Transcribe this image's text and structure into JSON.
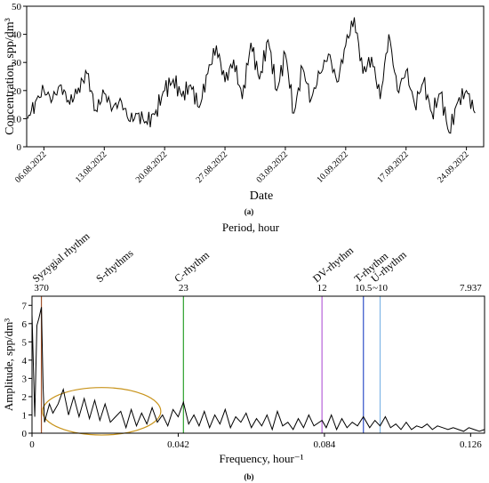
{
  "chart_data": [
    {
      "type": "line",
      "panel_label": "(a)",
      "xlabel": "Date",
      "ylabel": "Concentration, spp/dm³",
      "ylim": [
        0,
        50
      ],
      "yticks": [
        "0",
        "10",
        "20",
        "30",
        "40",
        "50"
      ],
      "x_tick_labels": [
        "06.08.2022",
        "13.08.2022",
        "20.08.2022",
        "27.08.2022",
        "03.09.2022",
        "10.09.2022",
        "17.09.2022",
        "24.09.2022"
      ],
      "x_tick_days": [
        0,
        7,
        14,
        21,
        28,
        35,
        42,
        49
      ],
      "grid": false,
      "series": [
        {
          "color": "#000000",
          "x": [
            -1.9,
            -1.0,
            0.0,
            1.0,
            2.0,
            3.0,
            4.0,
            5.0,
            6.0,
            7.0,
            8.0,
            9.0,
            10.0,
            11.0,
            12.0,
            13.0,
            14.0,
            15.0,
            16.0,
            17.0,
            18.0,
            19.0,
            20.0,
            21.0,
            22.0,
            23.0,
            24.0,
            25.0,
            26.0,
            27.0,
            28.0,
            29.0,
            30.0,
            31.0,
            32.0,
            33.0,
            34.0,
            35.0,
            36.0,
            37.0,
            38.0,
            39.0,
            40.0,
            41.0,
            42.0,
            43.0,
            44.0,
            45.0,
            46.0,
            47.0,
            48.0,
            49.0,
            50.0
          ],
          "y": [
            10,
            16,
            20,
            17,
            22,
            15,
            21,
            26,
            13,
            19,
            14,
            16,
            9,
            12,
            8,
            13,
            20,
            24,
            18,
            22,
            14,
            26,
            36,
            23,
            31,
            17,
            37,
            24,
            38,
            20,
            33,
            12,
            28,
            17,
            26,
            33,
            23,
            36,
            46,
            26,
            32,
            17,
            40,
            20,
            27,
            15,
            23,
            12,
            19,
            5,
            16,
            20,
            12
          ]
        }
      ]
    },
    {
      "type": "line",
      "panel_label": "(b)",
      "xlabel": "Frequency, hour⁻¹",
      "ylabel": "Amplitude, spp/dm³",
      "top_axis_title": "Period, hour",
      "xlim": [
        0,
        0.13
      ],
      "ylim": [
        0,
        7.5
      ],
      "xticks": [
        "0",
        "0.042",
        "0.084",
        "0.126"
      ],
      "yticks": [
        "0",
        "1",
        "2",
        "3",
        "4",
        "5",
        "6",
        "7"
      ],
      "top_ticks": [
        {
          "label": "370",
          "freq": 0.0027,
          "color": "#a0522d"
        },
        {
          "label": "23",
          "freq": 0.0435,
          "color": "#2ca02c"
        },
        {
          "label": "12",
          "freq": 0.0833,
          "color": "#9b30d0"
        },
        {
          "label": "10.5",
          "freq": 0.0952,
          "color": "#1f3ea8"
        },
        {
          "label": "~10",
          "freq": 0.1,
          "color": "#3aa0d8"
        },
        {
          "label": "7.937",
          "freq": 0.126,
          "color": "#000000"
        }
      ],
      "vertical_lines": [
        {
          "freq": 0.0027,
          "color": "#a0522d"
        },
        {
          "freq": 0.0435,
          "color": "#2ca02c"
        },
        {
          "freq": 0.0833,
          "color": "#b560d8"
        },
        {
          "freq": 0.0952,
          "color": "#3050c8"
        },
        {
          "freq": 0.1,
          "color": "#7fb6e6"
        }
      ],
      "annotations": [
        {
          "text": "Syzygial rhythm",
          "color": "#c0392b",
          "freq": 0.0027
        },
        {
          "text": "S-rhythms",
          "color": "#c8931a",
          "freq": 0.021
        },
        {
          "text": "C-rhythm",
          "color": "#2ca02c",
          "freq": 0.0435
        },
        {
          "text": "DV-rhythm",
          "color": "#9b30d0",
          "freq": 0.0833
        },
        {
          "text": "T-rhythm",
          "color": "#1f3ea8",
          "freq": 0.0952
        },
        {
          "text": "U-rhythm",
          "color": "#3aa0d8",
          "freq": 0.1
        }
      ],
      "ellipse": {
        "cx": 0.02,
        "cy": 1.2,
        "rx": 0.017,
        "ry": 1.3,
        "color": "#c8931a"
      },
      "grid": false,
      "series": [
        {
          "color": "#000000",
          "x": [
            0.0,
            0.0008,
            0.0014,
            0.002,
            0.0027,
            0.0032,
            0.0036,
            0.004,
            0.005,
            0.006,
            0.0075,
            0.009,
            0.0105,
            0.012,
            0.0135,
            0.015,
            0.0165,
            0.018,
            0.0195,
            0.021,
            0.0225,
            0.024,
            0.0255,
            0.027,
            0.0285,
            0.03,
            0.0315,
            0.033,
            0.0345,
            0.036,
            0.0375,
            0.039,
            0.0405,
            0.042,
            0.0435,
            0.045,
            0.0465,
            0.048,
            0.0495,
            0.051,
            0.0525,
            0.054,
            0.0555,
            0.057,
            0.0585,
            0.06,
            0.0615,
            0.063,
            0.0645,
            0.066,
            0.0675,
            0.069,
            0.0705,
            0.072,
            0.0735,
            0.075,
            0.0765,
            0.078,
            0.0795,
            0.081,
            0.0833,
            0.0845,
            0.086,
            0.0875,
            0.089,
            0.0905,
            0.092,
            0.0935,
            0.0952,
            0.097,
            0.0985,
            0.1,
            0.1015,
            0.103,
            0.1045,
            0.106,
            0.1075,
            0.109,
            0.1105,
            0.112,
            0.1135,
            0.115,
            0.1165,
            0.118,
            0.1195,
            0.121,
            0.1225,
            0.124,
            0.1255,
            0.127,
            0.1285,
            0.13
          ],
          "y": [
            6.5,
            0.9,
            5.9,
            6.3,
            6.9,
            2.5,
            0.6,
            0.9,
            1.6,
            1.1,
            1.6,
            2.4,
            1.0,
            2.0,
            0.9,
            1.9,
            0.8,
            1.8,
            0.7,
            1.6,
            0.6,
            0.9,
            1.2,
            0.3,
            1.3,
            0.4,
            1.1,
            0.5,
            1.4,
            0.6,
            1.0,
            0.4,
            1.3,
            0.9,
            1.7,
            0.5,
            1.0,
            0.4,
            1.2,
            0.3,
            1.0,
            0.5,
            1.3,
            0.3,
            0.9,
            0.6,
            1.1,
            0.3,
            0.8,
            0.4,
            1.0,
            0.2,
            1.2,
            0.4,
            0.6,
            0.2,
            0.8,
            0.3,
            1.0,
            0.4,
            0.7,
            0.3,
            1.0,
            0.2,
            0.8,
            0.3,
            0.6,
            0.4,
            0.9,
            0.3,
            0.7,
            0.4,
            0.9,
            0.3,
            0.5,
            0.2,
            0.6,
            0.2,
            0.4,
            0.3,
            0.5,
            0.2,
            0.4,
            0.3,
            0.2,
            0.3,
            0.2,
            0.1,
            0.3,
            0.2,
            0.1,
            0.2
          ]
        }
      ]
    }
  ]
}
